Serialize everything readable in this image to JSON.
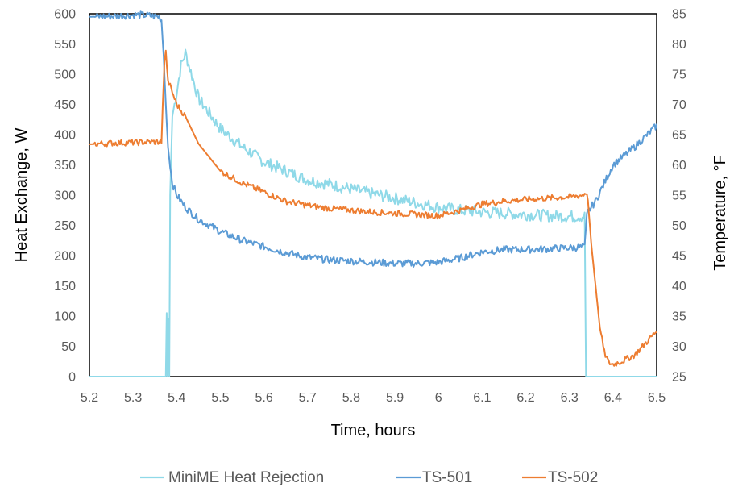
{
  "chart_data": {
    "type": "line",
    "xlabel": "Time, hours",
    "ylabel_left": "Heat Exchange, W",
    "ylabel_right": "Temperature, °F",
    "xlim": [
      5.2,
      6.5
    ],
    "ylim_left": [
      0,
      600
    ],
    "ylim_right": [
      25,
      85
    ],
    "x_ticks": [
      "5.2",
      "5.3",
      "5.4",
      "5.5",
      "5.6",
      "5.7",
      "5.8",
      "5.9",
      "6",
      "6.1",
      "6.2",
      "6.3",
      "6.4",
      "6.5"
    ],
    "x_tick_values": [
      5.2,
      5.3,
      5.4,
      5.5,
      5.6,
      5.7,
      5.8,
      5.9,
      6.0,
      6.1,
      6.2,
      6.3,
      6.4,
      6.5
    ],
    "y_left_ticks": [
      "0",
      "50",
      "100",
      "150",
      "200",
      "250",
      "300",
      "350",
      "400",
      "450",
      "500",
      "550",
      "600"
    ],
    "y_left_tick_values": [
      0,
      50,
      100,
      150,
      200,
      250,
      300,
      350,
      400,
      450,
      500,
      550,
      600
    ],
    "y_right_ticks": [
      "25",
      "30",
      "35",
      "40",
      "45",
      "50",
      "55",
      "60",
      "65",
      "70",
      "75",
      "80",
      "85"
    ],
    "y_right_tick_values": [
      25,
      30,
      35,
      40,
      45,
      50,
      55,
      60,
      65,
      70,
      75,
      80,
      85
    ],
    "grid": false,
    "legend_position": "bottom",
    "series": [
      {
        "name": "MiniME Heat Rejection",
        "axis": "left",
        "color": "#8fd9e8",
        "points": [
          [
            5.2,
            0
          ],
          [
            5.375,
            0
          ],
          [
            5.377,
            105
          ],
          [
            5.379,
            0
          ],
          [
            5.381,
            95
          ],
          [
            5.383,
            0
          ],
          [
            5.385,
            300
          ],
          [
            5.39,
            430
          ],
          [
            5.4,
            470
          ],
          [
            5.41,
            515
          ],
          [
            5.42,
            535
          ],
          [
            5.43,
            510
          ],
          [
            5.45,
            460
          ],
          [
            5.5,
            410
          ],
          [
            5.55,
            380
          ],
          [
            5.6,
            355
          ],
          [
            5.65,
            340
          ],
          [
            5.7,
            325
          ],
          [
            5.75,
            318
          ],
          [
            5.8,
            310
          ],
          [
            5.85,
            302
          ],
          [
            5.9,
            295
          ],
          [
            5.95,
            287
          ],
          [
            6.0,
            280
          ],
          [
            6.05,
            275
          ],
          [
            6.1,
            272
          ],
          [
            6.15,
            270
          ],
          [
            6.2,
            268
          ],
          [
            6.25,
            266
          ],
          [
            6.3,
            265
          ],
          [
            6.335,
            265
          ],
          [
            6.338,
            0
          ],
          [
            6.5,
            0
          ]
        ]
      },
      {
        "name": "TS-501",
        "axis": "right",
        "color": "#5b9bd5",
        "points": [
          [
            5.2,
            84.5
          ],
          [
            5.25,
            84.6
          ],
          [
            5.3,
            84.8
          ],
          [
            5.32,
            84.8
          ],
          [
            5.335,
            84.7
          ],
          [
            5.345,
            84.6
          ],
          [
            5.36,
            84.5
          ],
          [
            5.365,
            84.0
          ],
          [
            5.37,
            78
          ],
          [
            5.375,
            70
          ],
          [
            5.38,
            63
          ],
          [
            5.385,
            60
          ],
          [
            5.39,
            57
          ],
          [
            5.4,
            55
          ],
          [
            5.42,
            53
          ],
          [
            5.45,
            51
          ],
          [
            5.5,
            49
          ],
          [
            5.55,
            47.5
          ],
          [
            5.6,
            46.5
          ],
          [
            5.65,
            45.5
          ],
          [
            5.7,
            44.7
          ],
          [
            5.75,
            44.3
          ],
          [
            5.8,
            44.1
          ],
          [
            5.85,
            43.9
          ],
          [
            5.9,
            43.7
          ],
          [
            5.95,
            43.7
          ],
          [
            6.0,
            43.9
          ],
          [
            6.05,
            44.6
          ],
          [
            6.1,
            45.6
          ],
          [
            6.15,
            46.0
          ],
          [
            6.2,
            46.0
          ],
          [
            6.25,
            46.1
          ],
          [
            6.3,
            46.3
          ],
          [
            6.335,
            46.4
          ],
          [
            6.34,
            52
          ],
          [
            6.36,
            54
          ],
          [
            6.38,
            57
          ],
          [
            6.4,
            60
          ],
          [
            6.45,
            63
          ],
          [
            6.5,
            66.5
          ]
        ]
      },
      {
        "name": "TS-502",
        "axis": "right",
        "color": "#ed7d31",
        "points": [
          [
            5.2,
            63.4
          ],
          [
            5.25,
            63.6
          ],
          [
            5.3,
            63.7
          ],
          [
            5.35,
            63.8
          ],
          [
            5.365,
            63.8
          ],
          [
            5.368,
            70
          ],
          [
            5.372,
            77
          ],
          [
            5.375,
            78.5
          ],
          [
            5.38,
            74
          ],
          [
            5.385,
            73
          ],
          [
            5.39,
            72
          ],
          [
            5.4,
            70
          ],
          [
            5.42,
            68
          ],
          [
            5.45,
            63.5
          ],
          [
            5.5,
            59
          ],
          [
            5.55,
            57
          ],
          [
            5.6,
            55.5
          ],
          [
            5.65,
            54
          ],
          [
            5.7,
            53.3
          ],
          [
            5.75,
            52.8
          ],
          [
            5.8,
            52.5
          ],
          [
            5.85,
            52.2
          ],
          [
            5.9,
            52.0
          ],
          [
            5.95,
            51.8
          ],
          [
            6.0,
            51.6
          ],
          [
            6.05,
            52.5
          ],
          [
            6.1,
            53.5
          ],
          [
            6.15,
            54.0
          ],
          [
            6.2,
            54.3
          ],
          [
            6.25,
            54.5
          ],
          [
            6.3,
            54.7
          ],
          [
            6.33,
            55
          ],
          [
            6.34,
            55.5
          ],
          [
            6.345,
            52
          ],
          [
            6.35,
            47
          ],
          [
            6.36,
            40
          ],
          [
            6.37,
            33
          ],
          [
            6.38,
            29
          ],
          [
            6.39,
            27.3
          ],
          [
            6.4,
            27.0
          ],
          [
            6.42,
            27.5
          ],
          [
            6.45,
            28.6
          ],
          [
            6.5,
            32.5
          ]
        ]
      }
    ]
  }
}
